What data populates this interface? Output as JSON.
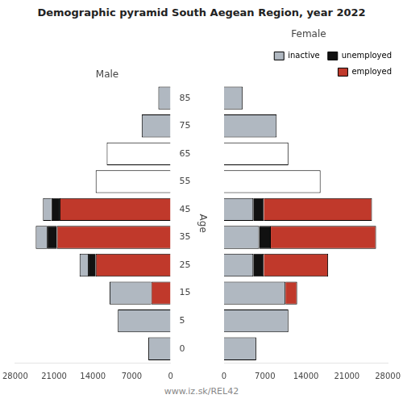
{
  "title": "Demographic pyramid South Aegean Region, year 2022",
  "annotations": [
    "www.iz.sk/REL42"
  ],
  "chart_data": [
    {
      "type": "bar",
      "title": "Male",
      "ylabel": "Age",
      "orientation": "horizontal",
      "stacked": true,
      "grid": false,
      "categories": [
        "85",
        "75",
        "65",
        "55",
        "45",
        "35",
        "25",
        "15",
        "5",
        "0"
      ],
      "series": [
        {
          "name": "employed",
          "color": "#c0392b",
          "values": [
            0,
            0,
            0,
            0,
            20000,
            20500,
            13500,
            3500,
            0,
            0
          ]
        },
        {
          "name": "unemployed",
          "color": "#111111",
          "values": [
            0,
            0,
            0,
            0,
            1500,
            1800,
            1400,
            0,
            0,
            0
          ]
        },
        {
          "name": "inactive",
          "color": "#b0b8c1",
          "colors": [
            "#b0b8c1",
            "#b0b8c1",
            "#ffffff",
            "#ffffff",
            "#b0b8c1",
            "#b0b8c1",
            "#b0b8c1",
            "#b0b8c1",
            "#b0b8c1",
            "#b0b8c1"
          ],
          "values": [
            2200,
            5200,
            11500,
            13500,
            1500,
            2000,
            1500,
            7500,
            9500,
            4000
          ]
        }
      ],
      "xlim": [
        28000,
        0
      ],
      "xticks": [
        28000,
        21000,
        14000,
        7000,
        0
      ]
    },
    {
      "type": "bar",
      "title": "Female",
      "orientation": "horizontal",
      "stacked": true,
      "grid": false,
      "tick_labels": "x",
      "legend": "upper right",
      "categories": [
        "85",
        "75",
        "65",
        "55",
        "45",
        "35",
        "25",
        "15",
        "5",
        "0"
      ],
      "series": [
        {
          "name": "inactive",
          "color": "#b0b8c1",
          "colors": [
            "#b0b8c1",
            "#b0b8c1",
            "#ffffff",
            "#ffffff",
            "#b0b8c1",
            "#b0b8c1",
            "#b0b8c1",
            "#b0b8c1",
            "#b0b8c1",
            "#b0b8c1"
          ],
          "values": [
            3200,
            9000,
            11000,
            16500,
            5000,
            6000,
            5000,
            10500,
            11000,
            5500
          ]
        },
        {
          "name": "unemployed",
          "color": "#111111",
          "values": [
            0,
            0,
            0,
            0,
            1800,
            2000,
            1800,
            0,
            0,
            0
          ]
        },
        {
          "name": "employed",
          "color": "#c0392b",
          "values": [
            0,
            0,
            0,
            0,
            18500,
            18000,
            11000,
            2000,
            0,
            0
          ]
        }
      ],
      "xlim": [
        0,
        28000
      ],
      "xticks": [
        0,
        7000,
        14000,
        21000,
        28000
      ]
    }
  ]
}
